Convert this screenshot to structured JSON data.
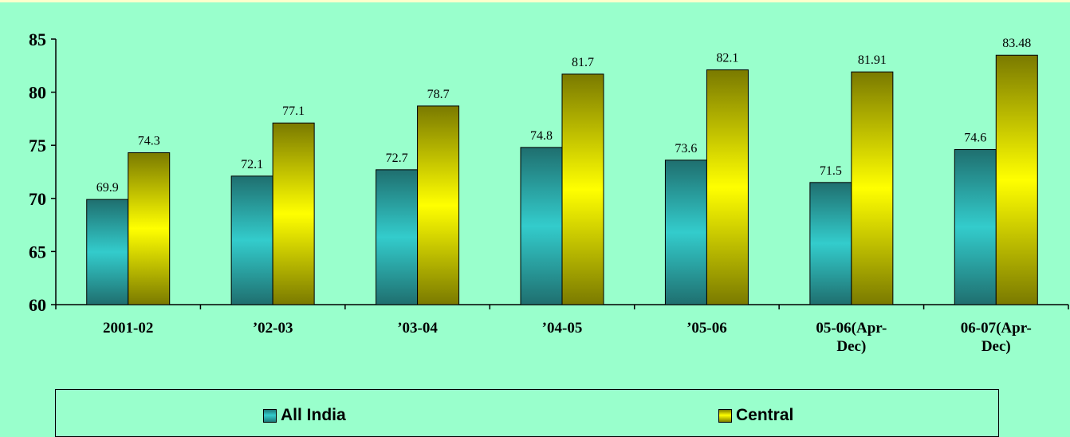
{
  "chart_data": {
    "type": "bar",
    "categories": [
      "2001-02",
      "’02-03",
      "’03-04",
      "’04-05",
      "’05-06",
      "05-06(Apr-Dec)",
      "06-07(Apr-Dec)"
    ],
    "category_lines": [
      [
        "2001-02"
      ],
      [
        "’02-03"
      ],
      [
        "’03-04"
      ],
      [
        "’04-05"
      ],
      [
        "’05-06"
      ],
      [
        "05-06(Apr-",
        "Dec)"
      ],
      [
        "06-07(Apr-",
        "Dec)"
      ]
    ],
    "series": [
      {
        "name": "All India",
        "values": [
          69.9,
          72.1,
          72.7,
          74.8,
          73.6,
          71.5,
          74.6
        ],
        "labels": [
          "69.9",
          "72.1",
          "72.7",
          "74.8",
          "73.6",
          "71.5",
          "74.6"
        ],
        "color": "#33cccc",
        "shade": "#1f6f6f"
      },
      {
        "name": "Central",
        "values": [
          74.3,
          77.1,
          78.7,
          81.7,
          82.1,
          81.91,
          83.48
        ],
        "labels": [
          "74.3",
          "77.1",
          "78.7",
          "81.7",
          "82.1",
          "81.91",
          "83.48"
        ],
        "color": "#ffff00",
        "shade": "#7a7a00"
      }
    ],
    "ylim": [
      60,
      85
    ],
    "yticks": [
      "60",
      "65",
      "70",
      "75",
      "80",
      "85"
    ],
    "title": "",
    "xlabel": "",
    "ylabel": "",
    "grid": false,
    "legend_position": "bottom"
  },
  "colors": {
    "background": "#99ffcc",
    "top_border": "#ffffcc"
  }
}
